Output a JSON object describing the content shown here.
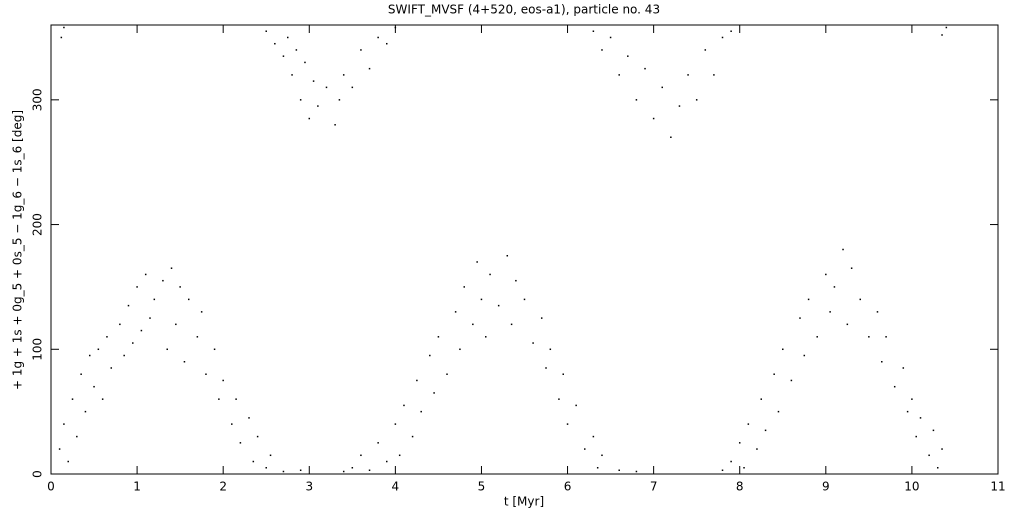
{
  "chart_data": {
    "type": "scatter",
    "title": "SWIFT_MVSF (4+520, eos-a1), particle no. 43",
    "xlabel": "t [Myr]",
    "ylabel": "+ 1g + 1s + 0g_5 + 0s_5 − 1g_6 − 1s_6 [deg]",
    "xlim": [
      0,
      11
    ],
    "ylim": [
      0,
      360
    ],
    "xticks": [
      0,
      1,
      2,
      3,
      4,
      5,
      6,
      7,
      8,
      9,
      10,
      11
    ],
    "yticks": [
      0,
      100,
      200,
      300
    ],
    "color": "#000000",
    "x": [
      0.1,
      0.15,
      0.2,
      0.25,
      0.3,
      0.35,
      0.4,
      0.45,
      0.5,
      0.55,
      0.6,
      0.65,
      0.7,
      0.8,
      0.85,
      0.9,
      0.95,
      1.0,
      1.05,
      1.1,
      1.15,
      1.2,
      1.3,
      1.35,
      1.4,
      1.45,
      1.5,
      1.55,
      1.6,
      1.7,
      1.75,
      1.8,
      1.9,
      1.95,
      2.0,
      2.1,
      2.15,
      2.2,
      2.3,
      2.35,
      2.4,
      2.5,
      2.55,
      2.7,
      2.9,
      2.5,
      2.6,
      2.7,
      2.75,
      2.8,
      2.85,
      2.9,
      2.95,
      3.0,
      3.05,
      3.1,
      3.2,
      3.3,
      3.35,
      3.4,
      3.5,
      3.6,
      3.7,
      3.8,
      3.9,
      4.0,
      3.4,
      3.5,
      3.6,
      3.7,
      3.8,
      3.9,
      4.0,
      4.05,
      4.1,
      4.2,
      4.25,
      4.3,
      4.4,
      4.45,
      4.5,
      4.6,
      4.7,
      4.75,
      4.8,
      4.9,
      4.95,
      5.0,
      5.05,
      5.1,
      5.2,
      5.3,
      5.35,
      5.4,
      5.5,
      5.6,
      5.7,
      5.75,
      5.8,
      5.9,
      5.95,
      6.0,
      6.1,
      6.2,
      6.3,
      6.35,
      6.4,
      6.6,
      6.8,
      6.3,
      6.4,
      6.5,
      6.6,
      6.7,
      6.8,
      6.9,
      7.0,
      7.1,
      7.2,
      7.3,
      7.4,
      7.5,
      7.6,
      7.7,
      7.8,
      7.9,
      7.8,
      7.9,
      8.0,
      8.05,
      8.1,
      8.2,
      8.25,
      8.3,
      8.4,
      8.45,
      8.5,
      8.6,
      8.7,
      8.75,
      8.8,
      8.9,
      9.0,
      9.05,
      9.1,
      9.2,
      9.25,
      9.3,
      9.4,
      9.5,
      9.6,
      9.65,
      9.7,
      9.8,
      9.9,
      9.95,
      10.0,
      10.05,
      10.1,
      10.2,
      10.25,
      10.3,
      10.35,
      0.12,
      0.15,
      10.35,
      10.4
    ],
    "y": [
      20,
      40,
      10,
      60,
      30,
      80,
      50,
      95,
      70,
      100,
      60,
      110,
      85,
      120,
      95,
      135,
      105,
      150,
      115,
      160,
      125,
      140,
      155,
      100,
      165,
      120,
      150,
      90,
      140,
      110,
      130,
      80,
      100,
      60,
      75,
      40,
      60,
      25,
      45,
      10,
      30,
      5,
      15,
      2,
      3,
      355,
      345,
      335,
      350,
      320,
      340,
      300,
      330,
      285,
      315,
      295,
      310,
      280,
      300,
      320,
      310,
      340,
      325,
      350,
      345,
      358,
      2,
      5,
      15,
      3,
      25,
      10,
      40,
      15,
      55,
      30,
      75,
      50,
      95,
      65,
      110,
      80,
      130,
      100,
      150,
      120,
      170,
      140,
      110,
      160,
      135,
      175,
      120,
      155,
      140,
      105,
      125,
      85,
      100,
      60,
      80,
      40,
      55,
      20,
      30,
      5,
      15,
      3,
      2,
      355,
      340,
      350,
      320,
      335,
      300,
      325,
      285,
      310,
      270,
      295,
      320,
      300,
      340,
      320,
      350,
      355,
      3,
      10,
      25,
      5,
      40,
      20,
      60,
      35,
      80,
      50,
      100,
      75,
      125,
      95,
      140,
      110,
      160,
      130,
      150,
      180,
      120,
      165,
      140,
      110,
      130,
      90,
      110,
      70,
      85,
      50,
      60,
      30,
      45,
      15,
      35,
      5,
      20,
      350,
      358,
      352,
      358
    ]
  }
}
